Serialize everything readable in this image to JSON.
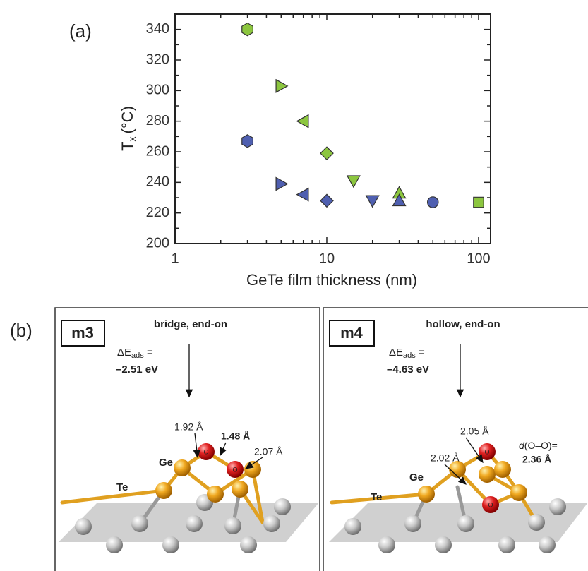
{
  "chart_data": {
    "type": "scatter",
    "panel_label": "(a)",
    "xlabel": "GeTe film thickness (nm)",
    "ylabel": {
      "main": "T",
      "subscript": "x",
      "unit": "(°C)"
    },
    "xscale": "log",
    "xlim": [
      1,
      120
    ],
    "ylim": [
      200,
      350
    ],
    "xticks": [
      1,
      10,
      100
    ],
    "xminorticks": [
      2,
      3,
      4,
      5,
      6,
      7,
      8,
      9,
      20,
      30,
      40,
      50,
      60,
      70,
      80,
      90
    ],
    "yticks": [
      200,
      220,
      240,
      260,
      280,
      300,
      320,
      340
    ],
    "yminorticks": [
      210,
      230,
      250,
      270,
      290,
      310,
      330
    ],
    "series": [
      {
        "color": "#8cc63f",
        "x": [
          3,
          5,
          7,
          10,
          15,
          30,
          100
        ],
        "values": [
          340,
          303,
          280,
          259,
          241,
          233,
          227
        ],
        "markers": [
          "hexagon",
          "triangle-right",
          "triangle-left",
          "diamond",
          "triangle-down",
          "triangle-up",
          "square"
        ]
      },
      {
        "color": "#4f5fb0",
        "x": [
          3,
          5,
          7,
          10,
          20,
          30,
          50
        ],
        "values": [
          267,
          239,
          232,
          228,
          228,
          228,
          227
        ],
        "markers": [
          "hexagon",
          "triangle-right",
          "triangle-left",
          "diamond",
          "triangle-down",
          "triangle-up",
          "circle"
        ]
      }
    ]
  },
  "panel_b": {
    "label": "(b)",
    "energy_symbol": "ΔE",
    "energy_subscript": "ads",
    "energy_equals": " =",
    "atom_label": "O",
    "panels": [
      {
        "id": "m3",
        "site": "bridge, end-on",
        "energy": "–2.51 eV",
        "ge": "Ge",
        "te": "Te",
        "distances": [
          "1.92 Å",
          "1.48 Å",
          "2.07 Å"
        ]
      },
      {
        "id": "m4",
        "site": "hollow, end-on",
        "energy": "–4.63 eV",
        "ge": "Ge",
        "te": "Te",
        "distances": [
          "2.05 Å",
          "2.02 Å"
        ],
        "oo_symbol": "d",
        "oo_text": "(O–O)=",
        "oo_value": "2.36 Å"
      }
    ]
  }
}
